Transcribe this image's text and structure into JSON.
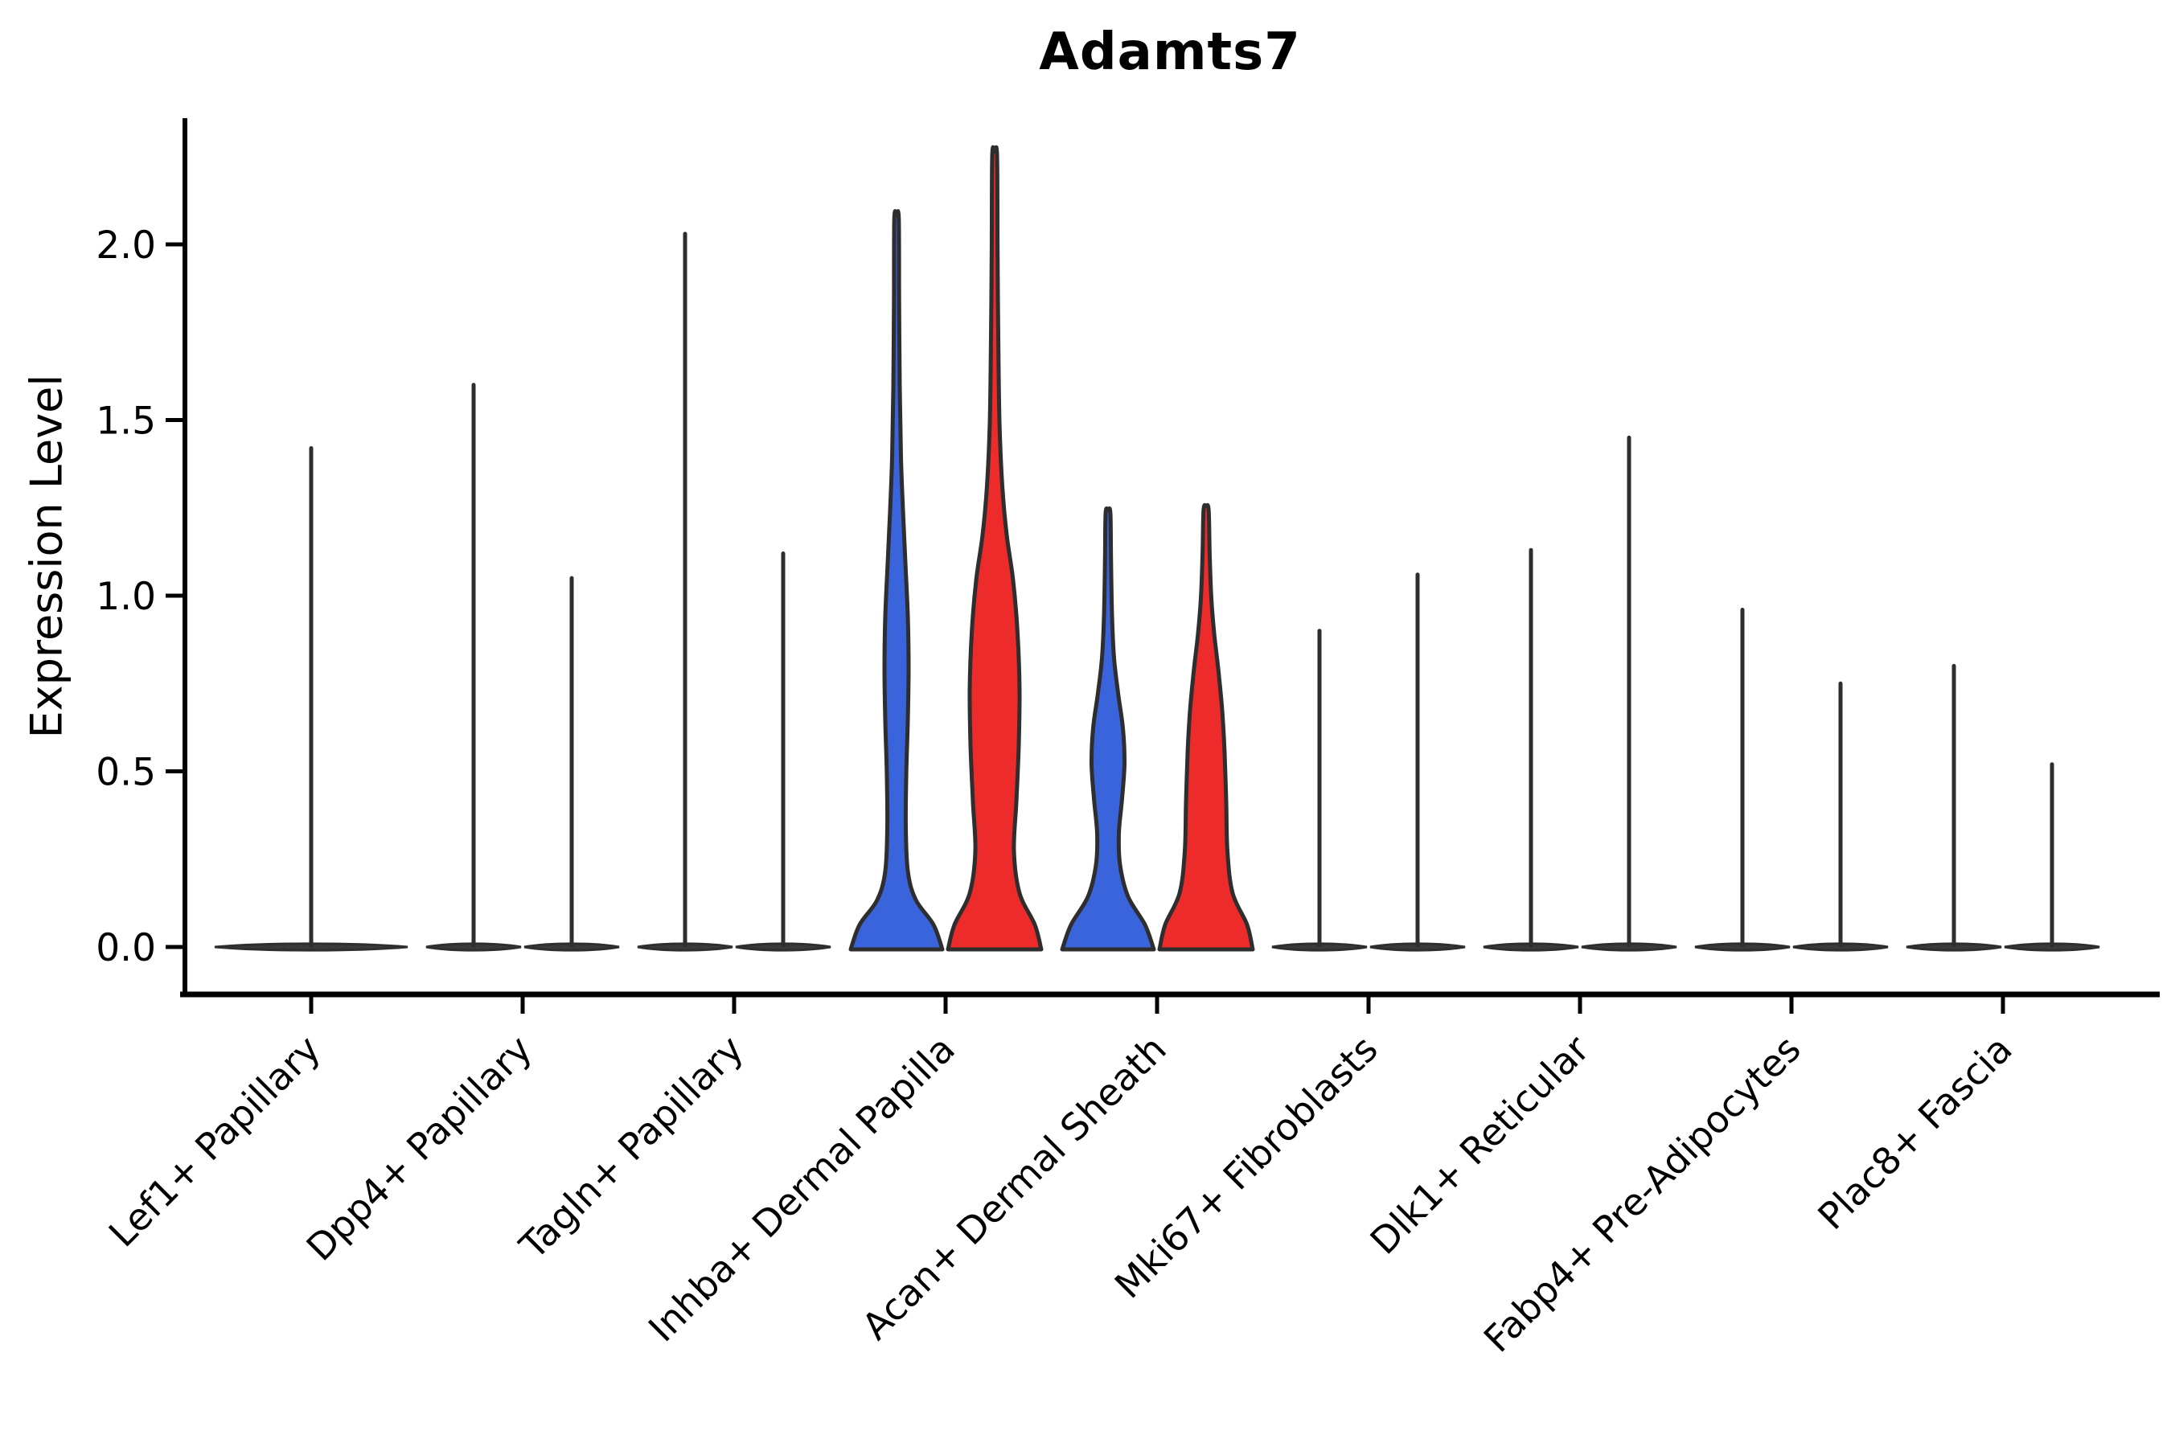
{
  "chart_data": {
    "type": "violin",
    "title": "Adamts7",
    "ylabel": "Expression Level",
    "xlabel": "",
    "legend_position": "none",
    "grid": false,
    "ylim": [
      -0.14,
      2.36
    ],
    "ytick_labels": [
      "0.0",
      "0.5",
      "1.0",
      "1.5",
      "2.0"
    ],
    "ytick_values": [
      0,
      0.5,
      1.0,
      1.5,
      2.0
    ],
    "categories": [
      "Lef1+ Papillary",
      "Dpp4+ Papillary",
      "Tagln+ Papillary",
      "Inhba+ Dermal Papilla",
      "Acan+ Dermal Sheath",
      "Mki67+ Fibroblasts",
      "Dlk1+ Reticular",
      "Fabp4+ Pre-Adipocytes",
      "Plac8+ Fascia"
    ],
    "colors": {
      "split_blue": "#3A64DC",
      "split_red": "#EE2B2B",
      "uncolored_violin": "#3A3A3A",
      "outline": "#2E2E2E",
      "axis": "#000000"
    },
    "violins": [
      {
        "category": "Lef1+ Papillary",
        "single": {
          "max": 1.42,
          "color": "uncolored_violin",
          "flat": true
        }
      },
      {
        "category": "Dpp4+ Papillary",
        "left": {
          "max": 1.6,
          "color": "uncolored_violin",
          "flat": true
        },
        "right": {
          "max": 1.05,
          "color": "uncolored_violin",
          "flat": true
        }
      },
      {
        "category": "Tagln+ Papillary",
        "left": {
          "max": 2.03,
          "color": "uncolored_violin",
          "flat": true
        },
        "right": {
          "max": 1.12,
          "color": "uncolored_violin",
          "flat": true
        }
      },
      {
        "category": "Inhba+ Dermal Papilla",
        "left": {
          "max": 2.08,
          "color": "split_blue",
          "flat": false,
          "profile": [
            [
              0,
              0.966
            ],
            [
              0.07,
              0.78
            ],
            [
              0.14,
              0.41
            ],
            [
              0.22,
              0.24
            ],
            [
              0.35,
              0.195
            ],
            [
              0.5,
              0.205
            ],
            [
              0.65,
              0.237
            ],
            [
              0.8,
              0.254
            ],
            [
              0.95,
              0.237
            ],
            [
              1.1,
              0.186
            ],
            [
              1.25,
              0.136
            ],
            [
              1.4,
              0.093
            ],
            [
              1.6,
              0.068
            ],
            [
              1.85,
              0.054
            ],
            [
              2.08,
              0.047
            ]
          ]
        },
        "right": {
          "max": 2.26,
          "color": "split_red",
          "flat": false,
          "profile": [
            [
              0,
              0.983
            ],
            [
              0.07,
              0.847
            ],
            [
              0.16,
              0.525
            ],
            [
              0.28,
              0.407
            ],
            [
              0.42,
              0.458
            ],
            [
              0.58,
              0.508
            ],
            [
              0.74,
              0.525
            ],
            [
              0.9,
              0.483
            ],
            [
              1.05,
              0.39
            ],
            [
              1.18,
              0.254
            ],
            [
              1.32,
              0.161
            ],
            [
              1.5,
              0.102
            ],
            [
              1.75,
              0.076
            ],
            [
              2.0,
              0.061
            ],
            [
              2.26,
              0.051
            ]
          ]
        }
      },
      {
        "category": "Acan+ Dermal Sheath",
        "left": {
          "max": 1.24,
          "color": "split_blue",
          "flat": false,
          "profile": [
            [
              0,
              0.966
            ],
            [
              0.07,
              0.78
            ],
            [
              0.15,
              0.424
            ],
            [
              0.24,
              0.254
            ],
            [
              0.33,
              0.229
            ],
            [
              0.43,
              0.297
            ],
            [
              0.53,
              0.347
            ],
            [
              0.63,
              0.314
            ],
            [
              0.73,
              0.212
            ],
            [
              0.83,
              0.127
            ],
            [
              0.95,
              0.085
            ],
            [
              1.1,
              0.064
            ],
            [
              1.24,
              0.051
            ]
          ]
        },
        "right": {
          "max": 1.25,
          "color": "split_red",
          "flat": false,
          "profile": [
            [
              0,
              0.983
            ],
            [
              0.07,
              0.864
            ],
            [
              0.16,
              0.559
            ],
            [
              0.28,
              0.449
            ],
            [
              0.42,
              0.424
            ],
            [
              0.56,
              0.39
            ],
            [
              0.68,
              0.339
            ],
            [
              0.8,
              0.254
            ],
            [
              0.9,
              0.169
            ],
            [
              1.0,
              0.11
            ],
            [
              1.12,
              0.076
            ],
            [
              1.25,
              0.054
            ]
          ]
        }
      },
      {
        "category": "Mki67+ Fibroblasts",
        "left": {
          "max": 0.9,
          "color": "uncolored_violin",
          "flat": true
        },
        "right": {
          "max": 1.06,
          "color": "uncolored_violin",
          "flat": true
        }
      },
      {
        "category": "Dlk1+ Reticular",
        "left": {
          "max": 1.13,
          "color": "uncolored_violin",
          "flat": true
        },
        "right": {
          "max": 1.45,
          "color": "uncolored_violin",
          "flat": true
        }
      },
      {
        "category": "Fabp4+ Pre-Adipocytes",
        "left": {
          "max": 0.96,
          "color": "uncolored_violin",
          "flat": true
        },
        "right": {
          "max": 0.75,
          "color": "uncolored_violin",
          "flat": true
        }
      },
      {
        "category": "Plac8+ Fascia",
        "left": {
          "max": 0.8,
          "color": "uncolored_violin",
          "flat": true
        },
        "right": {
          "max": 0.52,
          "color": "uncolored_violin",
          "flat": true
        }
      }
    ]
  }
}
